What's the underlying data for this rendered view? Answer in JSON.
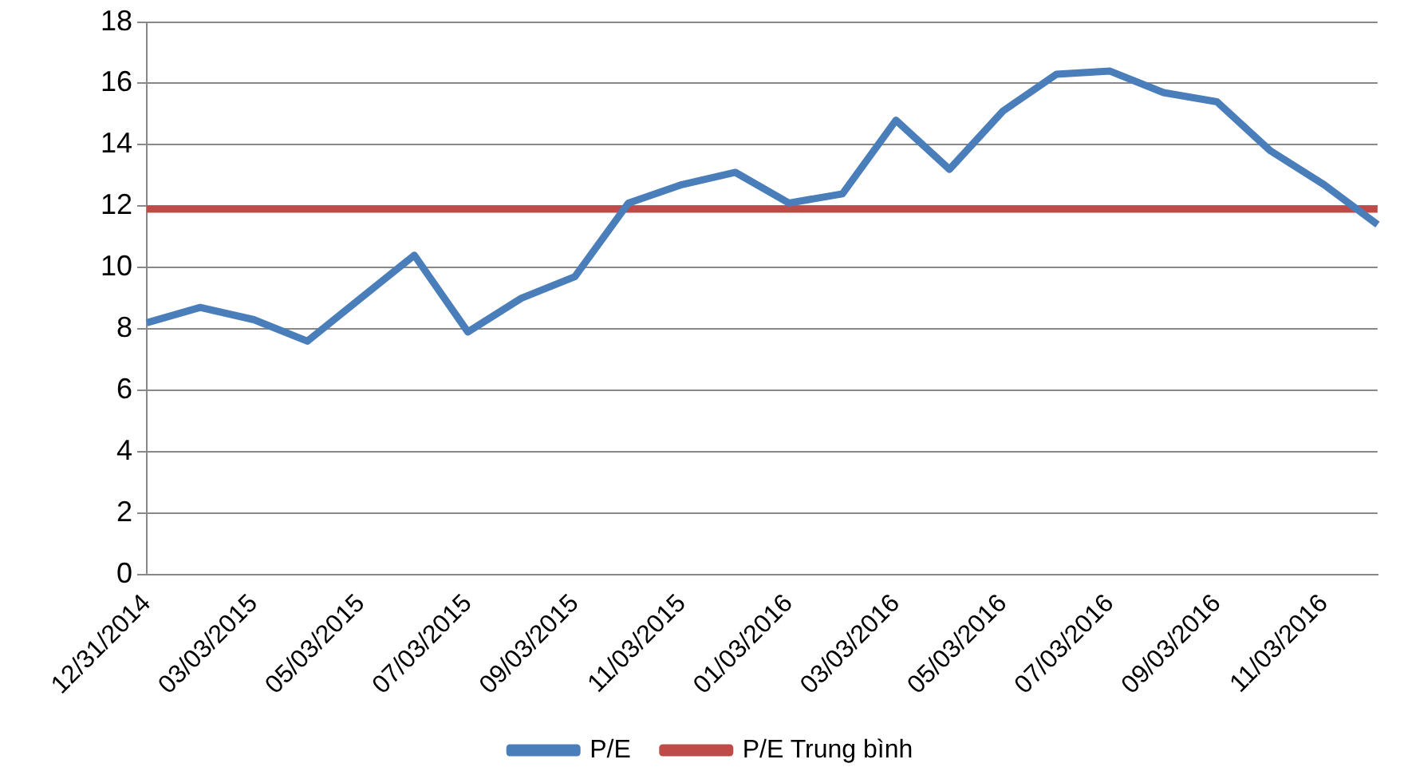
{
  "chart_data": {
    "type": "line",
    "categories": [
      "12/31/2014",
      null,
      "03/03/2015",
      null,
      "05/03/2015",
      null,
      "07/03/2015",
      null,
      "09/03/2015",
      null,
      "11/03/2015",
      null,
      "01/03/2016",
      null,
      "03/03/2016",
      null,
      "05/03/2016",
      null,
      "07/03/2016",
      null,
      "09/03/2016",
      null,
      "11/03/2016",
      null
    ],
    "series": [
      {
        "name": "P/E",
        "color": "#4a7ebb",
        "values": [
          8.2,
          8.7,
          8.3,
          7.6,
          9.0,
          10.4,
          7.9,
          9.0,
          9.7,
          12.1,
          12.7,
          13.1,
          12.1,
          12.4,
          14.8,
          13.2,
          15.1,
          16.3,
          16.4,
          15.7,
          15.4,
          13.8,
          12.7,
          11.4
        ]
      },
      {
        "name": "P/E Trung bình",
        "color": "#be4b48",
        "values": [
          11.9,
          11.9,
          11.9,
          11.9,
          11.9,
          11.9,
          11.9,
          11.9,
          11.9,
          11.9,
          11.9,
          11.9,
          11.9,
          11.9,
          11.9,
          11.9,
          11.9,
          11.9,
          11.9,
          11.9,
          11.9,
          11.9,
          11.9,
          11.9
        ]
      }
    ],
    "ylim": [
      0,
      18
    ],
    "yticks": [
      0,
      2,
      4,
      6,
      8,
      10,
      12,
      14,
      16,
      18
    ],
    "grid": "y",
    "legend": "bottom",
    "marker": "none",
    "line_style": "solid"
  }
}
